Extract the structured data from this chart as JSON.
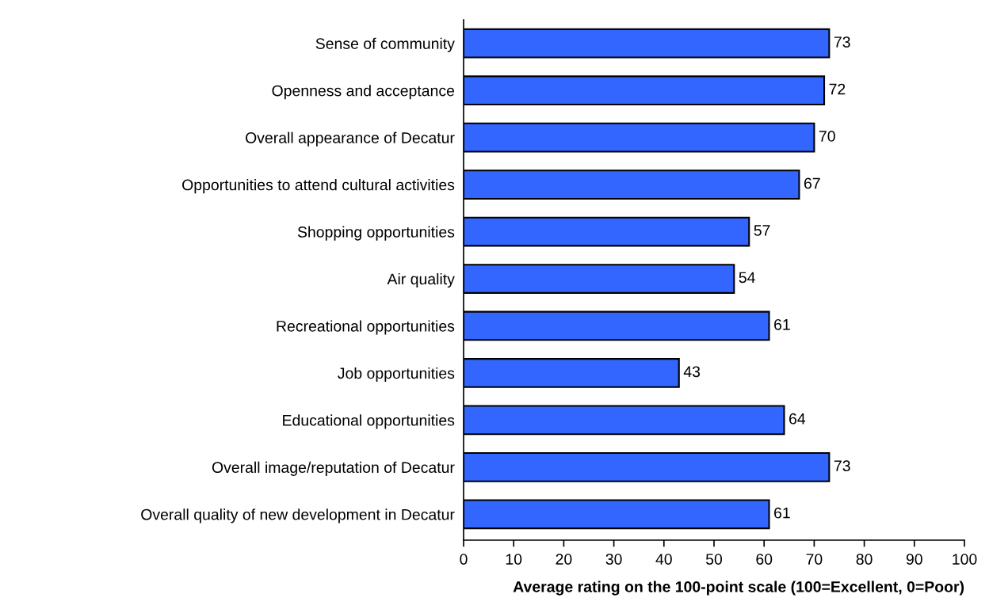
{
  "chart_data": {
    "type": "bar",
    "orientation": "horizontal",
    "categories": [
      "Sense of community",
      "Openness and acceptance",
      "Overall appearance of Decatur",
      "Opportunities to attend cultural activities",
      "Shopping opportunities",
      "Air quality",
      "Recreational opportunities",
      "Job opportunities",
      "Educational opportunities",
      "Overall image/reputation of Decatur",
      "Overall quality of new development in Decatur"
    ],
    "values": [
      73,
      72,
      70,
      67,
      57,
      54,
      61,
      43,
      64,
      73,
      61
    ],
    "color": "#3366ff",
    "xlabel": "Average rating on the 100-point scale (100=Excellent, 0=Poor)",
    "xlim": [
      0,
      100
    ],
    "xticks": [
      0,
      10,
      20,
      30,
      40,
      50,
      60,
      70,
      80,
      90,
      100
    ],
    "data_labels": true,
    "grid": false,
    "legend": false
  }
}
